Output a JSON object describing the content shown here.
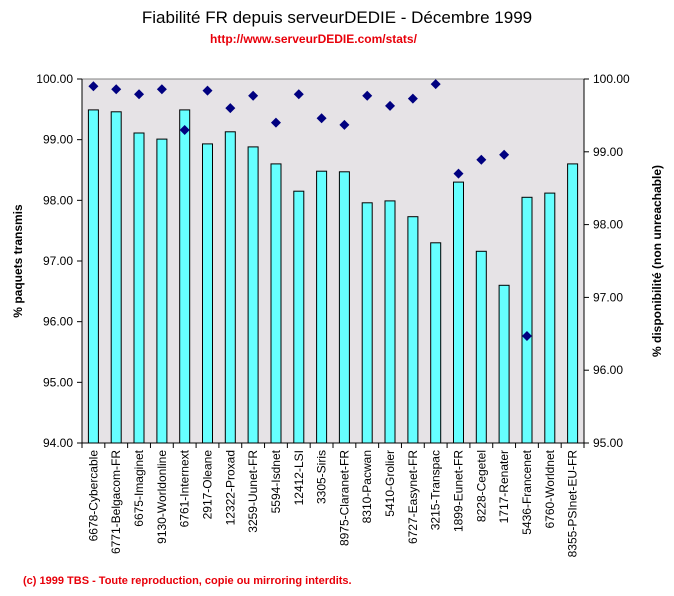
{
  "chart_data": {
    "type": "bar",
    "title": "Fiabilité FR depuis serveurDEDIE - Décembre 1999",
    "subtitle": "http://www.serveurDEDIE.com/stats/",
    "footer": "(c) 1999 TBS - Toute reproduction, copie ou mirroring interdits.",
    "ylabel": "% paquets transmis",
    "y2label": "% disponibilité (non unreachable)",
    "xlabel": "",
    "ylim": [
      94,
      100
    ],
    "y2lim": [
      95,
      100
    ],
    "yticks": [
      "94.00",
      "95.00",
      "96.00",
      "97.00",
      "98.00",
      "99.00",
      "100.00"
    ],
    "y2ticks": [
      "95.00",
      "96.00",
      "97.00",
      "98.00",
      "99.00",
      "100.00"
    ],
    "grid": false,
    "legend": "none",
    "categories": [
      "6678-Cybercable",
      "6771-Belgacom-FR",
      "6675-Imaginet",
      "9130-Worldonline",
      "6761-Internext",
      "2917-Oleane",
      "12322-Proxad",
      "3259-Uunet-FR",
      "5594-Isdnet",
      "12412-LSI",
      "3305-Siris",
      "8975-Claranet-FR",
      "8310-Pacwan",
      "5410-Grolier",
      "6727-Easynet-FR",
      "3215-Transpac",
      "1899-Eunet-FR",
      "8228-Cegetel",
      "1717-Renater",
      "5436-Francenet",
      "6760-Worldnet",
      "8355-PSInet-EU-FR"
    ],
    "series": [
      {
        "name": "% paquets transmis",
        "type": "bar",
        "axis": "left",
        "color": "#66ffff",
        "values": [
          99.49,
          99.46,
          99.11,
          99.01,
          99.49,
          98.93,
          99.13,
          98.88,
          98.6,
          98.15,
          98.48,
          98.47,
          97.96,
          97.99,
          97.73,
          97.3,
          98.3,
          97.16,
          96.6,
          98.05,
          98.12,
          98.6
        ]
      },
      {
        "name": "% disponibilité (non unreachable)",
        "type": "scatter",
        "marker": "diamond",
        "axis": "right",
        "color": "#000080",
        "values": [
          99.9,
          99.86,
          99.79,
          99.86,
          99.3,
          99.84,
          99.6,
          99.77,
          99.4,
          99.79,
          99.46,
          99.37,
          99.77,
          99.63,
          99.73,
          99.93,
          98.7,
          98.89,
          98.96,
          96.47,
          null,
          null
        ]
      }
    ],
    "colors": {
      "plot_background": "#e6e3e6",
      "bar_fill": "#66ffff",
      "bar_stroke": "#000000",
      "marker": "#000080",
      "accent_text": "#e8000a"
    }
  }
}
